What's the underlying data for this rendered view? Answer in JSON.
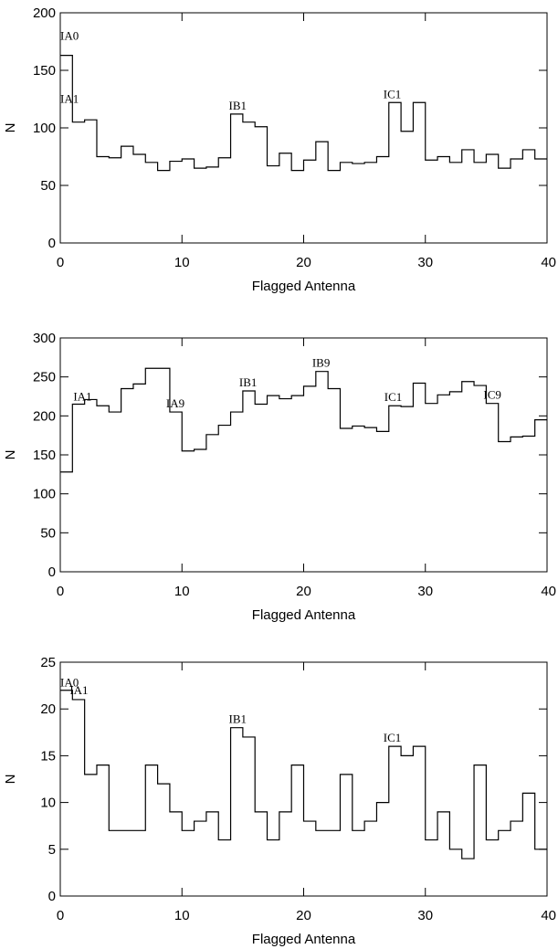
{
  "chart_data": [
    {
      "type": "histogram-step",
      "xlabel": "Flagged Antenna",
      "ylabel": "N",
      "xlim": [
        0,
        40
      ],
      "ylim": [
        0,
        200
      ],
      "xticks": [
        0,
        10,
        20,
        30,
        40
      ],
      "yticks": [
        0,
        50,
        100,
        150,
        200
      ],
      "grid": false,
      "x": [
        0,
        1,
        2,
        3,
        4,
        5,
        6,
        7,
        8,
        9,
        10,
        11,
        12,
        13,
        14,
        15,
        16,
        17,
        18,
        19,
        20,
        21,
        22,
        23,
        24,
        25,
        26,
        27,
        28,
        29,
        30,
        31,
        32,
        33,
        34,
        35,
        36,
        37,
        38,
        39
      ],
      "values": [
        163,
        105,
        107,
        75,
        74,
        84,
        77,
        70,
        63,
        71,
        73,
        65,
        66,
        74,
        112,
        105,
        101,
        67,
        78,
        63,
        72,
        88,
        63,
        70,
        69,
        70,
        75,
        122,
        97,
        122,
        72,
        75,
        70,
        81,
        70,
        77,
        65,
        73,
        81,
        73
      ],
      "annotations": [
        {
          "text": "IA0",
          "x": 0,
          "y": 163
        },
        {
          "text": "IA1",
          "x": 0,
          "y": 105
        },
        {
          "text": "IB1",
          "x": 14,
          "y": 112
        },
        {
          "text": "IC1",
          "x": 27,
          "y": 122
        }
      ]
    },
    {
      "type": "histogram-step",
      "xlabel": "Flagged Antenna",
      "ylabel": "N",
      "xlim": [
        0,
        40
      ],
      "ylim": [
        0,
        300
      ],
      "xticks": [
        0,
        10,
        20,
        30,
        40
      ],
      "yticks": [
        0,
        50,
        100,
        150,
        200,
        250,
        300
      ],
      "grid": false,
      "x": [
        0,
        1,
        2,
        3,
        4,
        5,
        6,
        7,
        8,
        9,
        10,
        11,
        12,
        13,
        14,
        15,
        16,
        17,
        18,
        19,
        20,
        21,
        22,
        23,
        24,
        25,
        26,
        27,
        28,
        29,
        30,
        31,
        32,
        33,
        34,
        35,
        36,
        37,
        38,
        39
      ],
      "values": [
        128,
        215,
        221,
        213,
        205,
        235,
        241,
        261,
        261,
        205,
        155,
        157,
        176,
        188,
        205,
        232,
        215,
        226,
        222,
        226,
        238,
        257,
        235,
        184,
        187,
        185,
        180,
        213,
        212,
        242,
        216,
        227,
        231,
        244,
        239,
        216,
        167,
        173,
        174,
        195
      ],
      "annotations": [
        {
          "text": "IA1",
          "x": 1,
          "y": 215
        },
        {
          "text": "IA9",
          "x": 9,
          "y": 205
        },
        {
          "text": "IB1",
          "x": 15,
          "y": 232
        },
        {
          "text": "IB9",
          "x": 21,
          "y": 257
        },
        {
          "text": "IC1",
          "x": 27,
          "y": 213
        },
        {
          "text": "IC9",
          "x": 35,
          "y": 216
        }
      ]
    },
    {
      "type": "histogram-step",
      "xlabel": "Flagged Antenna",
      "ylabel": "N",
      "xlim": [
        0,
        40
      ],
      "ylim": [
        0,
        25
      ],
      "xticks": [
        0,
        10,
        20,
        30,
        40
      ],
      "yticks": [
        0,
        5,
        10,
        15,
        20,
        25
      ],
      "grid": false,
      "x": [
        0,
        1,
        2,
        3,
        4,
        5,
        6,
        7,
        8,
        9,
        10,
        11,
        12,
        13,
        14,
        15,
        16,
        17,
        18,
        19,
        20,
        21,
        22,
        23,
        24,
        25,
        26,
        27,
        28,
        29,
        30,
        31,
        32,
        33,
        34,
        35,
        36,
        37,
        38,
        39
      ],
      "values": [
        22,
        21,
        13,
        14,
        7,
        7,
        7,
        14,
        12,
        9,
        7,
        8,
        9,
        6,
        18,
        17,
        9,
        6,
        9,
        14,
        8,
        7,
        7,
        13,
        7,
        8,
        10,
        16,
        15,
        16,
        6,
        9,
        5,
        4,
        14,
        6,
        7,
        8,
        11,
        5
      ],
      "annotations": [
        {
          "text": "IA0",
          "x": 0,
          "y": 22
        },
        {
          "text": "IA1",
          "x": 1,
          "y": 21
        },
        {
          "text": "IB1",
          "x": 14,
          "y": 18
        },
        {
          "text": "IC1",
          "x": 27,
          "y": 16
        }
      ]
    }
  ]
}
